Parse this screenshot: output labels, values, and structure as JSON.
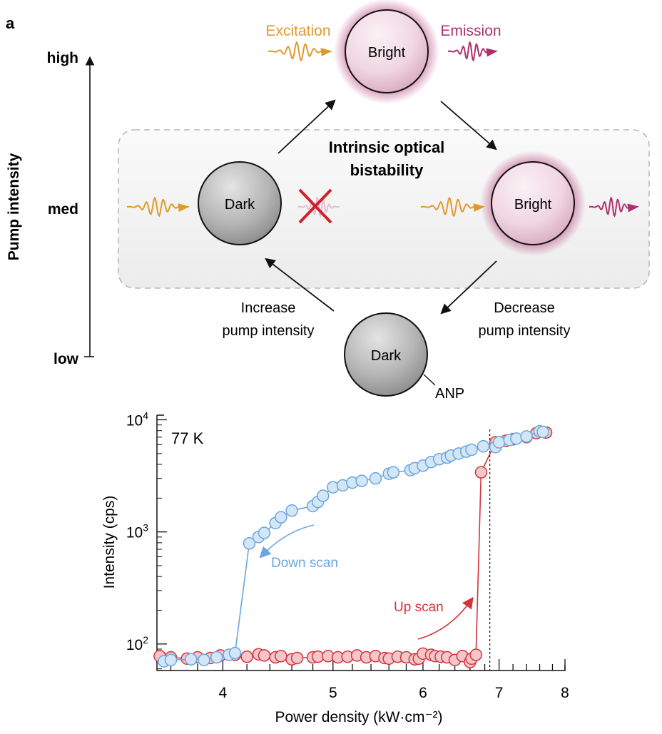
{
  "panel_label": "a",
  "diagram": {
    "y_axis_label": "Pump intensity",
    "levels": [
      "high",
      "med",
      "low"
    ],
    "excitation_label": "Excitation",
    "emission_label": "Emission",
    "box_title_line1": "Intrinsic optical",
    "box_title_line2": "bistability",
    "increase_line1": "Increase",
    "increase_line2": "pump intensity",
    "decrease_line1": "Decrease",
    "decrease_line2": "pump intensity",
    "sphere_bright_top": "Bright",
    "sphere_dark_med": "Dark",
    "sphere_bright_med": "Bright",
    "sphere_dark_low": "Dark",
    "anp_label": "ANP",
    "colors": {
      "excitation": "#e09a2c",
      "emission": "#b0306e",
      "blocked": "#d0202a",
      "dark_sphere": "#a9a9a9",
      "bright_sphere": "#f3dbe6"
    }
  },
  "chart_data": {
    "type": "scatter",
    "xlabel": "Power density (kW·cm⁻²)",
    "ylabel": "Intensity (cps)",
    "x_scale": "log",
    "y_scale": "log",
    "xlim": [
      3.5,
      8
    ],
    "ylim": [
      58,
      11000
    ],
    "x_ticks": [
      4,
      5,
      6,
      7,
      8
    ],
    "x_tick_labels": [
      "4",
      "5",
      "6",
      "7",
      "8"
    ],
    "y_ticks": [
      100,
      1000,
      10000
    ],
    "y_tick_labels": [
      {
        "base": "10",
        "exp": "2"
      },
      {
        "base": "10",
        "exp": "3"
      },
      {
        "base": "10",
        "exp": "4"
      }
    ],
    "annotation_temp": "77 K",
    "annotation_down": "Down scan",
    "annotation_up": "Up scan",
    "threshold_dashed_x": 6.87,
    "series": [
      {
        "name": "Up scan",
        "color": "#d3343c",
        "fill": "#f3c7c9",
        "x": [
          3.52,
          3.6,
          3.72,
          3.8,
          3.9,
          3.98,
          4.1,
          4.2,
          4.3,
          4.35,
          4.45,
          4.5,
          4.6,
          4.65,
          4.8,
          4.85,
          4.95,
          5.05,
          5.15,
          5.25,
          5.35,
          5.45,
          5.55,
          5.6,
          5.7,
          5.8,
          5.9,
          5.95,
          6.0,
          6.1,
          6.15,
          6.22,
          6.3,
          6.4,
          6.5,
          6.6,
          6.62,
          6.68,
          6.75,
          6.95,
          7.1,
          7.2,
          7.4,
          7.55,
          7.7
        ],
        "y": [
          78,
          76,
          74,
          76,
          75,
          79,
          80,
          77,
          81,
          79,
          76,
          78,
          73,
          75,
          76,
          77,
          78,
          76,
          77,
          79,
          76,
          78,
          75,
          74,
          77,
          76,
          73,
          74,
          82,
          80,
          78,
          77,
          76,
          72,
          78,
          69,
          74,
          80,
          3400,
          6300,
          6500,
          6700,
          7000,
          7600,
          7700
        ]
      },
      {
        "name": "Down scan",
        "color": "#6aa6df",
        "fill": "#d3e6f6",
        "x": [
          3.55,
          3.6,
          3.75,
          3.85,
          3.95,
          4.05,
          4.1,
          4.22,
          4.3,
          4.35,
          4.45,
          4.5,
          4.6,
          4.8,
          4.85,
          4.9,
          5.0,
          5.1,
          5.2,
          5.3,
          5.45,
          5.6,
          5.65,
          5.85,
          5.9,
          6.0,
          6.1,
          6.2,
          6.3,
          6.35,
          6.45,
          6.55,
          6.62,
          6.78,
          6.95,
          7.0,
          7.15,
          7.25,
          7.4,
          7.6,
          7.65
        ],
        "y": [
          70,
          72,
          73,
          72,
          76,
          80,
          83,
          790,
          900,
          980,
          1200,
          1350,
          1550,
          1700,
          1850,
          2100,
          2500,
          2600,
          2750,
          2850,
          3000,
          3300,
          3400,
          3550,
          3700,
          3900,
          4200,
          4450,
          4600,
          4800,
          5000,
          5200,
          5400,
          5800,
          5700,
          6300,
          6600,
          6800,
          7100,
          7900,
          7800
        ]
      }
    ]
  }
}
